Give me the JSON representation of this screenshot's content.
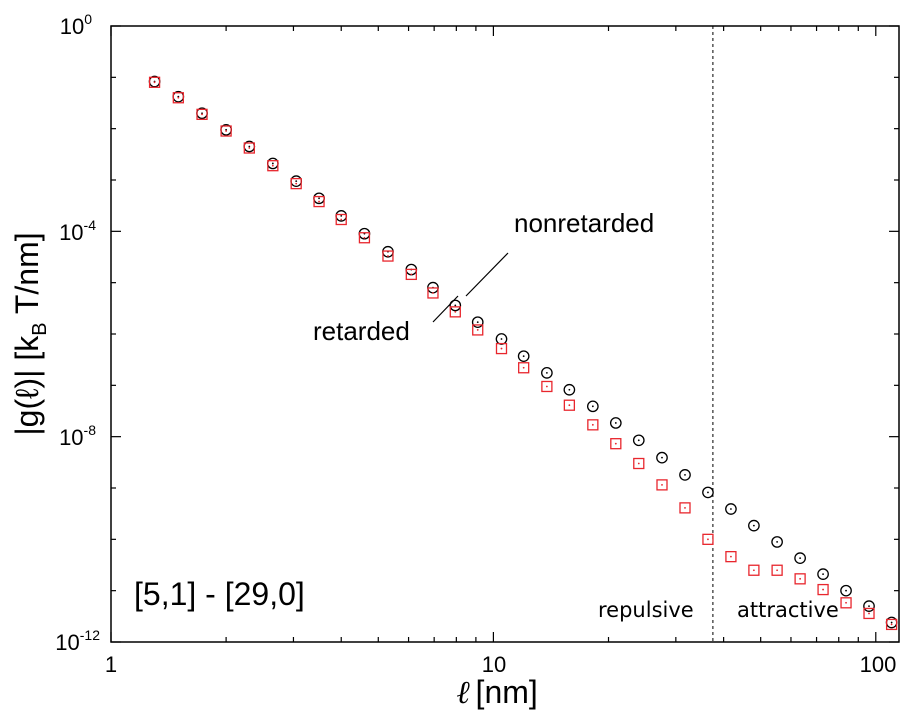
{
  "chart_data": {
    "type": "scatter",
    "title": "",
    "xlabel": {
      "symbol": "ℓ",
      "unit": "[nm]"
    },
    "ylabel": {
      "prefix": "|g(ℓ)| [k",
      "sub": "B",
      "suffix": " T/nm]"
    },
    "x_scale": "log",
    "y_scale": "log",
    "xlim": [
      1,
      115
    ],
    "ylim": [
      1e-12,
      1
    ],
    "x_ticks": [
      {
        "value": 1,
        "label": "1"
      },
      {
        "value": 10,
        "label": "10"
      },
      {
        "value": 100,
        "label": "100"
      }
    ],
    "y_ticks": [
      {
        "value": 1,
        "base": "10",
        "exp": "0"
      },
      {
        "value": 0.0001,
        "base": "10",
        "exp": "-4"
      },
      {
        "value": 1e-08,
        "base": "10",
        "exp": "-8"
      },
      {
        "value": 1e-12,
        "base": "10",
        "exp": "-12"
      }
    ],
    "series": [
      {
        "name": "nonretarded",
        "marker": "circle",
        "color": "#000000",
        "x": [
          1.3,
          1.5,
          1.73,
          2.0,
          2.3,
          2.65,
          3.05,
          3.5,
          4.0,
          4.6,
          5.3,
          6.1,
          6.95,
          7.95,
          9.1,
          10.5,
          12.0,
          13.8,
          15.8,
          18.2,
          20.9,
          24.0,
          27.6,
          31.7,
          36.4,
          41.8,
          48.0,
          55.2,
          63.4,
          72.8,
          83.6,
          96.0,
          110.0
        ],
        "y": [
          0.083,
          0.042,
          0.02,
          0.0095,
          0.0045,
          0.0021,
          0.00095,
          0.00044,
          0.0002,
          9e-05,
          4e-05,
          1.8e-05,
          8e-06,
          3.6e-06,
          1.7e-06,
          8e-07,
          3.7e-07,
          1.75e-07,
          8.2e-08,
          3.9e-08,
          1.85e-08,
          8.5e-09,
          3.9e-09,
          1.8e-09,
          8.2e-10,
          3.9e-10,
          1.85e-10,
          8.9e-11,
          4.3e-11,
          2.1e-11,
          1e-11,
          5e-12,
          2.4e-12
        ]
      },
      {
        "name": "retarded",
        "marker": "square",
        "color": "#e8262d",
        "x": [
          1.3,
          1.5,
          1.73,
          2.0,
          2.3,
          2.65,
          3.05,
          3.5,
          4.0,
          4.6,
          5.3,
          6.1,
          6.95,
          7.95,
          9.1,
          10.5,
          12.0,
          13.8,
          15.8,
          18.2,
          20.9,
          24.0,
          27.6,
          31.7,
          36.4,
          41.8,
          48.0,
          55.2,
          63.4,
          72.8,
          83.6,
          96.0,
          110.0
        ],
        "y": [
          0.08,
          0.04,
          0.019,
          0.009,
          0.0042,
          0.0019,
          0.00085,
          0.00038,
          0.00017,
          7.5e-05,
          3.3e-05,
          1.45e-05,
          6.3e-06,
          2.7e-06,
          1.2e-06,
          5.2e-07,
          2.2e-07,
          9.5e-08,
          4.1e-08,
          1.7e-08,
          7.3e-09,
          3e-09,
          1.15e-09,
          4.1e-10,
          1e-10,
          4.6e-11,
          2.5e-11,
          2.5e-11,
          1.7e-11,
          1.05e-11,
          5.8e-12,
          3.6e-12,
          2.2e-12
        ]
      }
    ],
    "divider_x": 37.5,
    "annotations": {
      "nonretarded": "nonretarded",
      "retarded": "retarded",
      "repulsive": "repulsive",
      "attractive": "attractive",
      "panel_label": "[5,1] - [29,0]"
    }
  }
}
